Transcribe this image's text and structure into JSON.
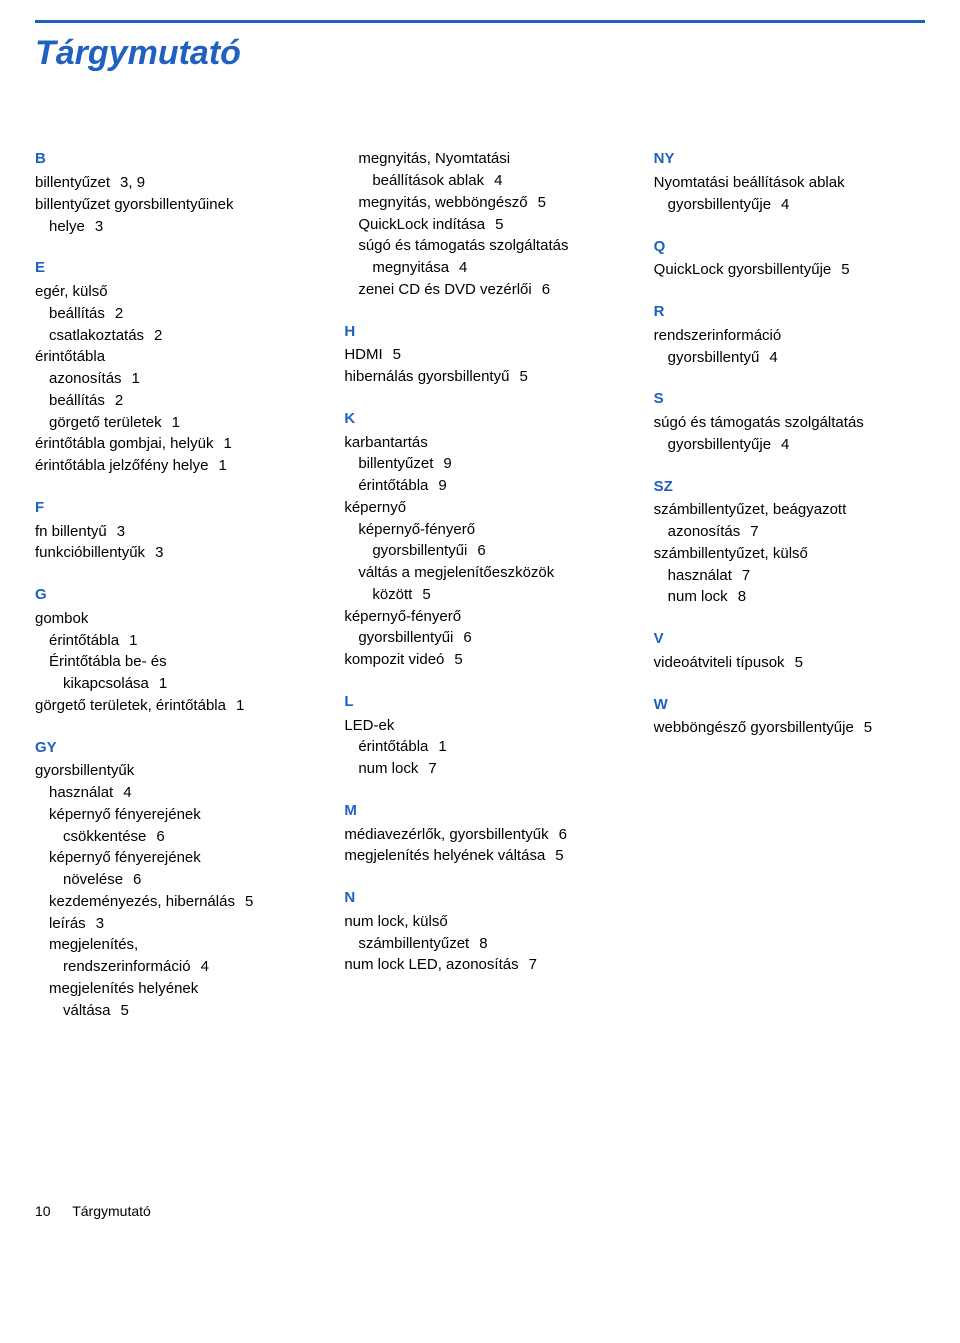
{
  "title": "Tárgymutató",
  "footer": {
    "page_number": "10",
    "section": "Tárgymutató"
  },
  "columns": [
    [
      {
        "letter": "B",
        "entries": [
          {
            "t": "billentyűzet",
            "p": "3,  9"
          },
          {
            "t": "billentyűzet gyorsbillentyűinek",
            "cont": "helye",
            "cp": "3"
          }
        ]
      },
      {
        "letter": "E",
        "entries": [
          {
            "t": "egér, külső"
          },
          {
            "sub": true,
            "t": "beállítás",
            "p": "2"
          },
          {
            "sub": true,
            "t": "csatlakoztatás",
            "p": "2"
          },
          {
            "t": "érintőtábla"
          },
          {
            "sub": true,
            "t": "azonosítás",
            "p": "1"
          },
          {
            "sub": true,
            "t": "beállítás",
            "p": "2"
          },
          {
            "sub": true,
            "t": "görgető területek",
            "p": "1"
          },
          {
            "t": "érintőtábla gombjai, helyük",
            "p": "1"
          },
          {
            "t": "érintőtábla jelzőfény helye",
            "p": "1"
          }
        ]
      },
      {
        "letter": "F",
        "entries": [
          {
            "t": "fn billentyű",
            "p": "3"
          },
          {
            "t": "funkcióbillentyűk",
            "p": "3"
          }
        ]
      },
      {
        "letter": "G",
        "entries": [
          {
            "t": "gombok"
          },
          {
            "sub": true,
            "t": "érintőtábla",
            "p": "1"
          },
          {
            "sub": true,
            "t": "Érintőtábla be- és"
          },
          {
            "sub2": true,
            "t": "kikapcsolása",
            "p": "1"
          },
          {
            "t": "görgető területek, érintőtábla",
            "p": "1"
          }
        ]
      },
      {
        "letter": "GY",
        "entries": [
          {
            "t": "gyorsbillentyűk"
          },
          {
            "sub": true,
            "t": "használat",
            "p": "4"
          },
          {
            "sub": true,
            "t": "képernyő fényerejének"
          },
          {
            "sub2": true,
            "t": "csökkentése",
            "p": "6"
          },
          {
            "sub": true,
            "t": "képernyő fényerejének"
          },
          {
            "sub2": true,
            "t": "növelése",
            "p": "6"
          },
          {
            "sub": true,
            "t": "kezdeményezés, hibernálás",
            "p": "5"
          },
          {
            "sub": true,
            "t": "leírás",
            "p": "3"
          },
          {
            "sub": true,
            "t": "megjelenítés,"
          },
          {
            "sub2": true,
            "t": "rendszerinformáció",
            "p": "4"
          },
          {
            "sub": true,
            "t": "megjelenítés helyének"
          },
          {
            "sub2": true,
            "t": "váltása",
            "p": "5"
          }
        ]
      }
    ],
    [
      {
        "letter": "",
        "entries": [
          {
            "sub": true,
            "t": "megnyitás, Nyomtatási"
          },
          {
            "sub2": true,
            "t": "beállítások ablak",
            "p": "4"
          },
          {
            "sub": true,
            "t": "megnyitás, webböngésző",
            "p": "5"
          },
          {
            "sub": true,
            "t": "QuickLock indítása",
            "p": "5"
          },
          {
            "sub": true,
            "t": "súgó és támogatás szolgáltatás"
          },
          {
            "sub2": true,
            "t": "megnyitása",
            "p": "4"
          },
          {
            "sub": true,
            "t": "zenei CD és DVD vezérlői",
            "p": "6"
          }
        ]
      },
      {
        "letter": "H",
        "entries": [
          {
            "t": "HDMI",
            "p": "5"
          },
          {
            "t": "hibernálás gyorsbillentyű",
            "p": "5"
          }
        ]
      },
      {
        "letter": "K",
        "entries": [
          {
            "t": "karbantartás"
          },
          {
            "sub": true,
            "t": "billentyűzet",
            "p": "9"
          },
          {
            "sub": true,
            "t": "érintőtábla",
            "p": "9"
          },
          {
            "t": "képernyő"
          },
          {
            "sub": true,
            "t": "képernyő-fényerő"
          },
          {
            "sub2": true,
            "t": "gyorsbillentyűi",
            "p": "6"
          },
          {
            "sub": true,
            "t": "váltás a megjelenítőeszközök"
          },
          {
            "sub2": true,
            "t": "között",
            "p": "5"
          },
          {
            "t": "képernyő-fényerő"
          },
          {
            "sub": true,
            "t": "gyorsbillentyűi",
            "p": "6"
          },
          {
            "t": "kompozit videó",
            "p": "5"
          }
        ]
      },
      {
        "letter": "L",
        "entries": [
          {
            "t": "LED-ek"
          },
          {
            "sub": true,
            "t": "érintőtábla",
            "p": "1"
          },
          {
            "sub": true,
            "t": "num lock",
            "p": "7"
          }
        ]
      },
      {
        "letter": "M",
        "entries": [
          {
            "t": "médiavezérlők, gyorsbillentyűk",
            "p": "6"
          },
          {
            "t": "megjelenítés helyének váltása",
            "p": "5"
          }
        ]
      },
      {
        "letter": "N",
        "entries": [
          {
            "t": "num lock, külső"
          },
          {
            "sub": true,
            "t": "számbillentyűzet",
            "p": "8"
          },
          {
            "t": "num lock LED, azonosítás",
            "p": "7"
          }
        ]
      }
    ],
    [
      {
        "letter": "NY",
        "entries": [
          {
            "t": "Nyomtatási beállítások ablak"
          },
          {
            "sub": true,
            "t": "gyorsbillentyűje",
            "p": "4"
          }
        ]
      },
      {
        "letter": "Q",
        "entries": [
          {
            "t": "QuickLock gyorsbillentyűje",
            "p": "5"
          }
        ]
      },
      {
        "letter": "R",
        "entries": [
          {
            "t": "rendszerinformáció"
          },
          {
            "sub": true,
            "t": "gyorsbillentyű",
            "p": "4"
          }
        ]
      },
      {
        "letter": "S",
        "entries": [
          {
            "t": "súgó és támogatás szolgáltatás"
          },
          {
            "sub": true,
            "t": "gyorsbillentyűje",
            "p": "4"
          }
        ]
      },
      {
        "letter": "SZ",
        "entries": [
          {
            "t": "számbillentyűzet, beágyazott"
          },
          {
            "sub": true,
            "t": "azonosítás",
            "p": "7"
          },
          {
            "t": "számbillentyűzet, külső"
          },
          {
            "sub": true,
            "t": "használat",
            "p": "7"
          },
          {
            "sub": true,
            "t": "num lock",
            "p": "8"
          }
        ]
      },
      {
        "letter": "V",
        "entries": [
          {
            "t": "videoátviteli típusok",
            "p": "5"
          }
        ]
      },
      {
        "letter": "W",
        "entries": [
          {
            "t": "webböngésző gyorsbillentyűje",
            "p": "5"
          }
        ]
      }
    ]
  ],
  "colors": {
    "accent": "#2060c0",
    "text": "#000000",
    "bg": "#ffffff"
  }
}
